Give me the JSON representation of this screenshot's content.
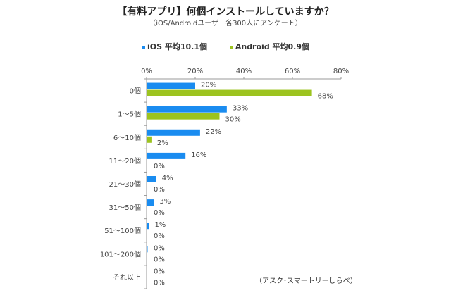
{
  "chart_data": {
    "type": "bar",
    "orientation": "horizontal",
    "title": "【有料アプリ】何個インストールしていますか？",
    "subtitle": "（iOS/Androidユーザ　各300人にアンケート）",
    "source": "（アスク･スマートリーしらべ）",
    "categories": [
      "0個",
      "1～5個",
      "6～10個",
      "11～20個",
      "21～30個",
      "31～50個",
      "51～100個",
      "101～200個",
      "それ以上"
    ],
    "series": [
      {
        "name": "iOS 平均10.1個",
        "color": "#1a8cf0",
        "values": [
          20,
          33,
          22,
          16,
          4,
          3,
          1,
          0,
          0
        ],
        "labels": [
          "20%",
          "33%",
          "22%",
          "16%",
          "4%",
          "3%",
          "1%",
          "0%",
          "0%"
        ]
      },
      {
        "name": "Android 平均0.9個",
        "color": "#9cc31f",
        "values": [
          68,
          30,
          2,
          0,
          0,
          0,
          0,
          0,
          0
        ],
        "labels": [
          "68%",
          "30%",
          "2%",
          "0%",
          "0%",
          "0%",
          "0%",
          "0%",
          "0%"
        ]
      }
    ],
    "xlim": [
      0,
      80
    ],
    "xticks": [
      "0%",
      "20%",
      "40%",
      "60%",
      "80%"
    ],
    "xtick_values": [
      0,
      20,
      40,
      60,
      80
    ],
    "legend_position": "top",
    "grid": false
  }
}
